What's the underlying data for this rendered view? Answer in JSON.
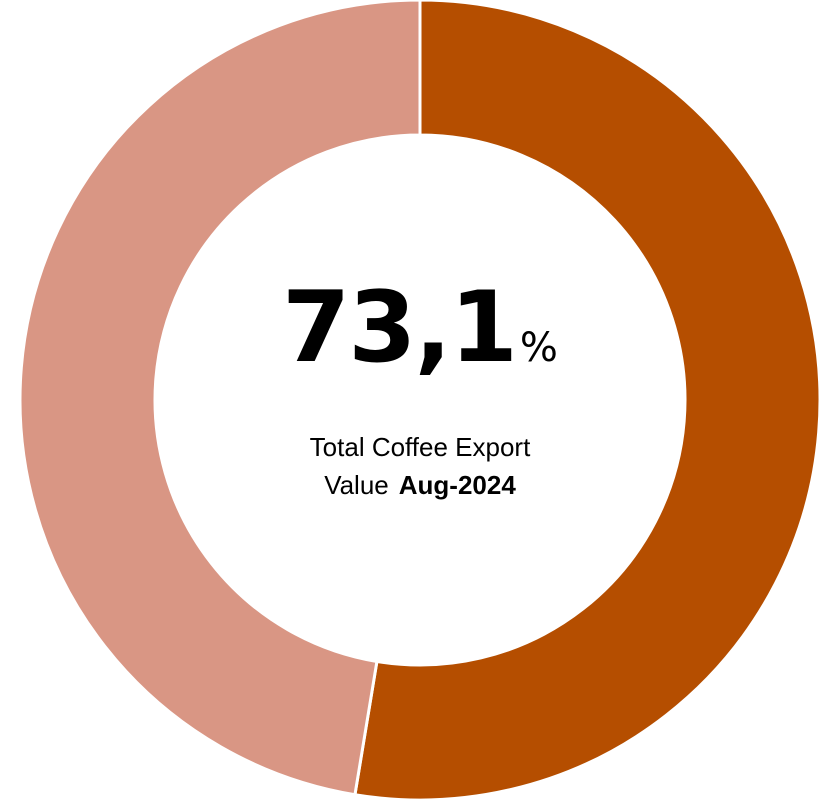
{
  "chart_data": {
    "type": "pie",
    "variant": "donut",
    "slices": [
      {
        "value": 52.6,
        "color": "#b54e00"
      },
      {
        "value": 47.4,
        "color": "#d99684"
      }
    ],
    "center": {
      "value_text": "73,1",
      "unit": "%",
      "caption_line1": "Total Coffee Export",
      "caption_line2_prefix": "Value",
      "caption_period": "Aug-2024"
    },
    "legend": "none"
  }
}
